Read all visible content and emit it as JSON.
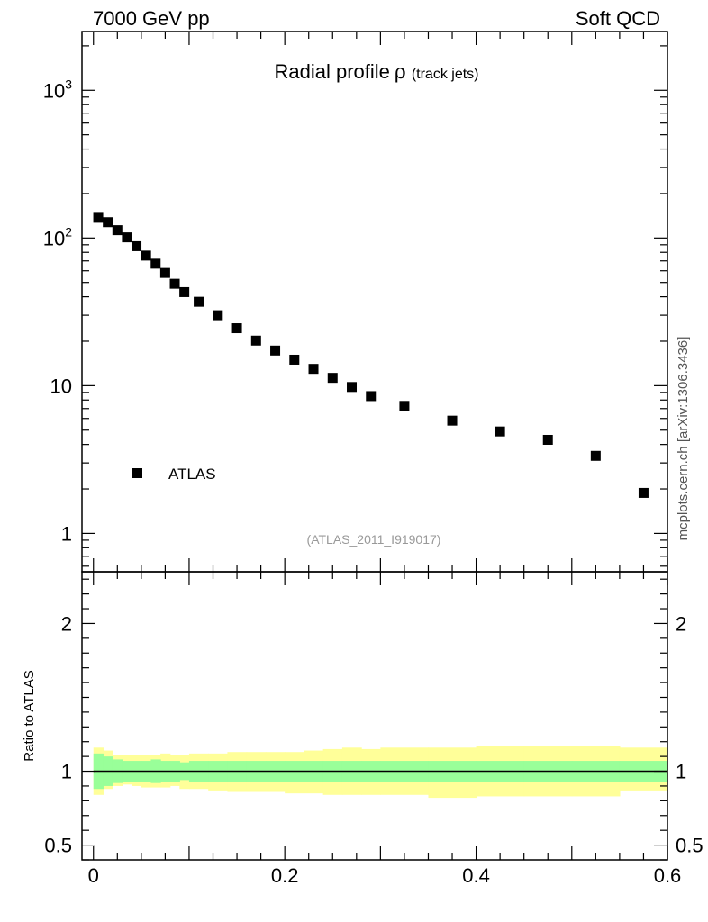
{
  "header": {
    "left_label": "7000 GeV pp",
    "right_label": "Soft QCD"
  },
  "side_label": "mcplots.cern.ch [arXiv:1306.3436]",
  "chart_data": {
    "type": "scatter",
    "title": "Radial profile",
    "title_symbol": "ρ",
    "title_suffix": "(track jets)",
    "analysis_id": "(ATLAS_2011_I919017)",
    "xlim": [
      -0.012,
      0.6
    ],
    "main": {
      "yscale": "log",
      "ylim": [
        0.55,
        2500
      ],
      "y_ticks": [
        {
          "value": 1000,
          "base": "10",
          "exp": "3"
        },
        {
          "value": 100,
          "base": "10",
          "exp": "2"
        },
        {
          "value": 10,
          "base": "10",
          "exp": ""
        },
        {
          "value": 1,
          "base": "1",
          "exp": ""
        }
      ],
      "series": [
        {
          "name": "ATLAS",
          "color": "#000000",
          "x": [
            0.005,
            0.015,
            0.025,
            0.035,
            0.045,
            0.055,
            0.065,
            0.075,
            0.085,
            0.095,
            0.11,
            0.13,
            0.15,
            0.17,
            0.19,
            0.21,
            0.23,
            0.25,
            0.27,
            0.29,
            0.325,
            0.375,
            0.425,
            0.475,
            0.525,
            0.575
          ],
          "y": [
            137,
            128,
            113,
            101,
            88,
            76,
            67,
            58,
            49,
            43,
            37,
            30,
            24.5,
            20.2,
            17.3,
            15,
            13,
            11.3,
            9.8,
            8.5,
            7.3,
            5.8,
            4.9,
            4.3,
            3.35,
            1.88
          ]
        }
      ]
    },
    "ratio": {
      "ylabel": "Ratio to ATLAS",
      "ylim": [
        0.4,
        2.35
      ],
      "y_ticks": [
        {
          "value": 2,
          "label": "2"
        },
        {
          "value": 1,
          "label": "1"
        },
        {
          "value": 0.5,
          "label": "0.5"
        }
      ],
      "x_ticks": [
        {
          "value": 0,
          "label": "0"
        },
        {
          "value": 0.2,
          "label": "0.2"
        },
        {
          "value": 0.4,
          "label": "0.4"
        },
        {
          "value": 0.6,
          "label": "0.6"
        }
      ],
      "band_colors": {
        "total": "#ffff99",
        "stat": "#99ff99",
        "line": "#000000"
      },
      "bins": [
        0,
        0.01,
        0.02,
        0.03,
        0.04,
        0.05,
        0.06,
        0.07,
        0.08,
        0.09,
        0.1,
        0.12,
        0.14,
        0.16,
        0.18,
        0.2,
        0.22,
        0.24,
        0.26,
        0.28,
        0.3,
        0.35,
        0.4,
        0.45,
        0.5,
        0.55,
        0.6
      ],
      "stat_lo": [
        0.88,
        0.9,
        0.92,
        0.93,
        0.93,
        0.93,
        0.92,
        0.93,
        0.93,
        0.94,
        0.93,
        0.93,
        0.93,
        0.93,
        0.93,
        0.93,
        0.93,
        0.93,
        0.93,
        0.93,
        0.93,
        0.93,
        0.93,
        0.93,
        0.93,
        0.93
      ],
      "stat_hi": [
        1.12,
        1.1,
        1.08,
        1.07,
        1.07,
        1.07,
        1.08,
        1.07,
        1.07,
        1.06,
        1.07,
        1.07,
        1.07,
        1.07,
        1.07,
        1.07,
        1.07,
        1.07,
        1.07,
        1.07,
        1.07,
        1.07,
        1.07,
        1.07,
        1.07,
        1.07
      ],
      "total_lo": [
        0.84,
        0.88,
        0.9,
        0.91,
        0.9,
        0.89,
        0.89,
        0.89,
        0.9,
        0.88,
        0.88,
        0.87,
        0.86,
        0.86,
        0.86,
        0.85,
        0.85,
        0.84,
        0.84,
        0.84,
        0.84,
        0.82,
        0.83,
        0.83,
        0.83,
        0.87
      ],
      "total_hi": [
        1.16,
        1.14,
        1.11,
        1.11,
        1.11,
        1.11,
        1.11,
        1.12,
        1.11,
        1.11,
        1.12,
        1.12,
        1.13,
        1.13,
        1.13,
        1.13,
        1.14,
        1.15,
        1.16,
        1.15,
        1.16,
        1.16,
        1.17,
        1.17,
        1.17,
        1.16
      ]
    }
  }
}
